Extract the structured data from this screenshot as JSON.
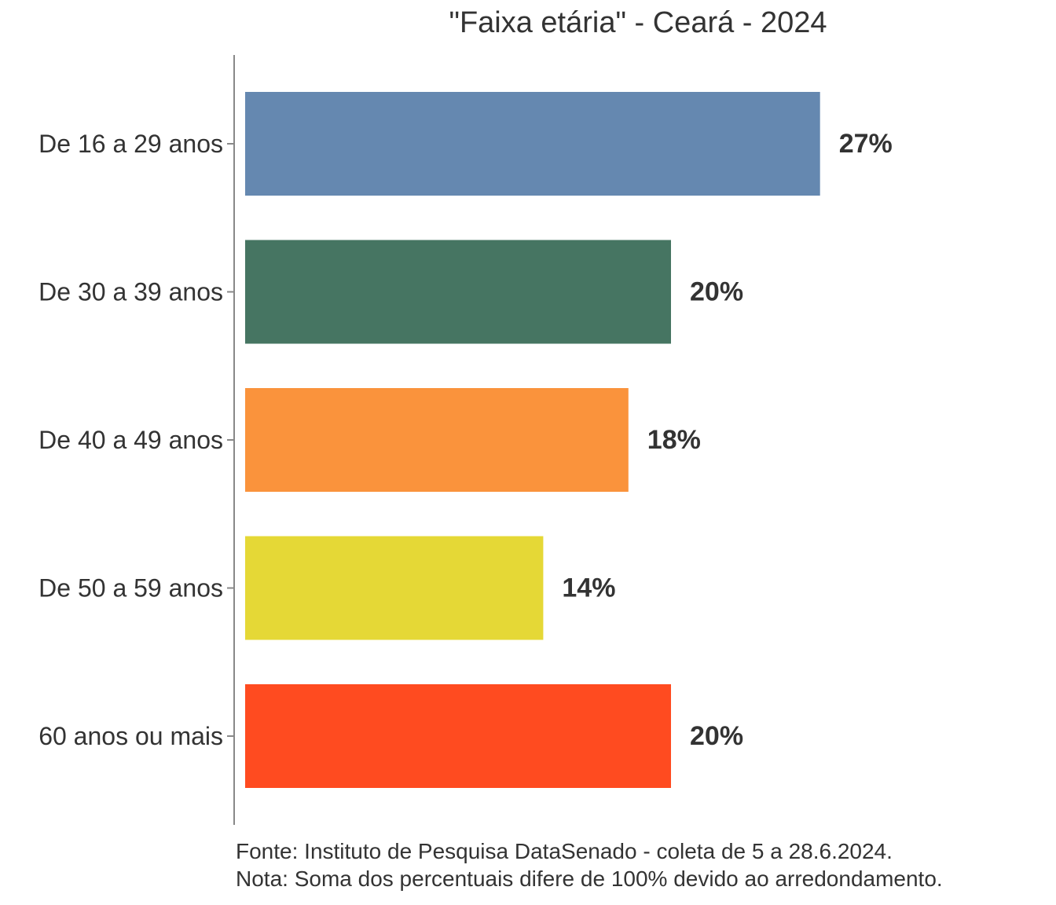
{
  "chart_data": {
    "type": "bar",
    "orientation": "horizontal",
    "title": "\"Faixa etária\" - Ceará - 2024",
    "categories": [
      "De 16 a 29 anos",
      "De 30 a 39 anos",
      "De 40 a 49 anos",
      "De 50 a 59 anos",
      "60 anos ou mais"
    ],
    "values": [
      27,
      20,
      18,
      14,
      20
    ],
    "value_labels": [
      "27%",
      "20%",
      "18%",
      "14%",
      "20%"
    ],
    "colors": [
      "#6588B0",
      "#467562",
      "#FA933C",
      "#E5D836",
      "#FF4B20"
    ],
    "unit": "%",
    "xlim": [
      0,
      30
    ],
    "xlabel": "",
    "ylabel": "",
    "grid": false,
    "legend": "none"
  },
  "captions": {
    "source": "Fonte: Instituto de Pesquisa DataSenado - coleta de 5 a 28.6.2024.",
    "note": "Nota: Soma dos percentuais difere de 100% devido ao arredondamento."
  }
}
